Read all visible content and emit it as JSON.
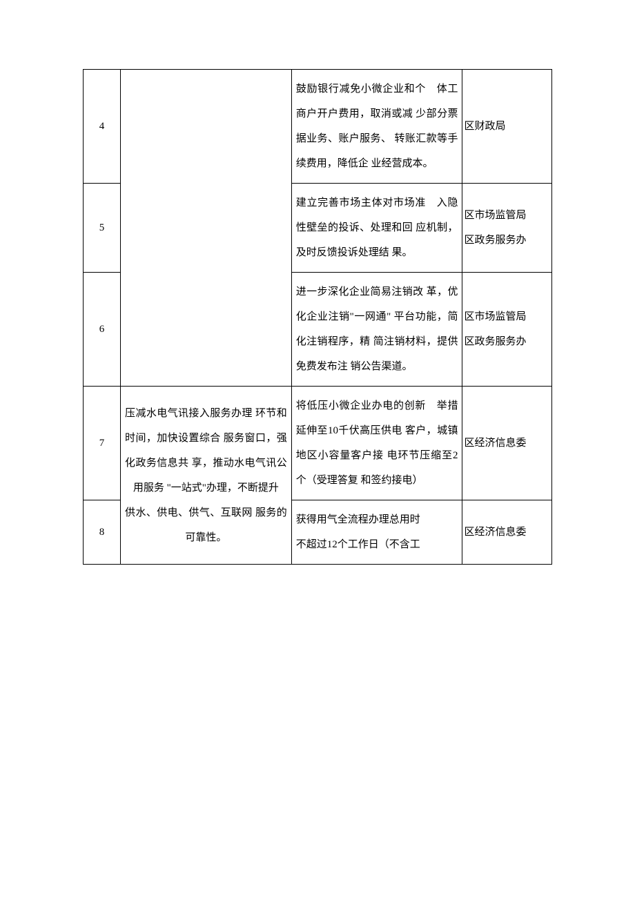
{
  "table": {
    "columns": {
      "num_width": 48,
      "desc_width": 220,
      "task_width": 220,
      "dept_width": 115
    },
    "styling": {
      "border_color": "#000000",
      "background_color": "#ffffff",
      "text_color": "#000000",
      "font_family": "SimSun",
      "font_size": 15,
      "line_height": 2.4
    },
    "rows": [
      {
        "num": "4",
        "desc": "",
        "task": "鼓励银行减免小微企业和个　体工商户开户费用，取消或减 少部分票据业务、账户服务、 转账汇款等手续费用，降低企 业经营成本。",
        "dept": "区财政局"
      },
      {
        "num": "5",
        "desc": "",
        "task": "建立完善市场主体对市场准　入隐性壁垒的投诉、处理和回 应机制，及时反馈投诉处理结 果。",
        "dept": "区市场监管局\n区政务服务办"
      },
      {
        "num": "6",
        "desc": "",
        "task": "进一步深化企业简易注销改 革，优化企业注销\"一网通\" 平台功能，简化注销程序，精 简注销材料，提供免费发布注 销公告渠道。",
        "dept": "区市场监管局\n区政务服务办"
      },
      {
        "num": "7",
        "desc": "压减水电气讯接入服务办理 环节和时间，加快设置综合 服务窗口，强化政务信息共 享，推动水电气讯公用服务 \"一站式\"办理，不断提升\n供水、供电、供气、互联网 服务的可靠性。",
        "task": "将低压小微企业办电的创新　举措延伸至10千伏高压供电 客户，城镇地区小容量客户接 电环节压缩至2个（受理答复 和签约接电）",
        "dept": "区经济信息委"
      },
      {
        "num": "8",
        "desc": "",
        "task": "获得用气全流程办理总用时\n不超过12个工作日（不含工",
        "dept": "区经济信息委"
      }
    ]
  }
}
